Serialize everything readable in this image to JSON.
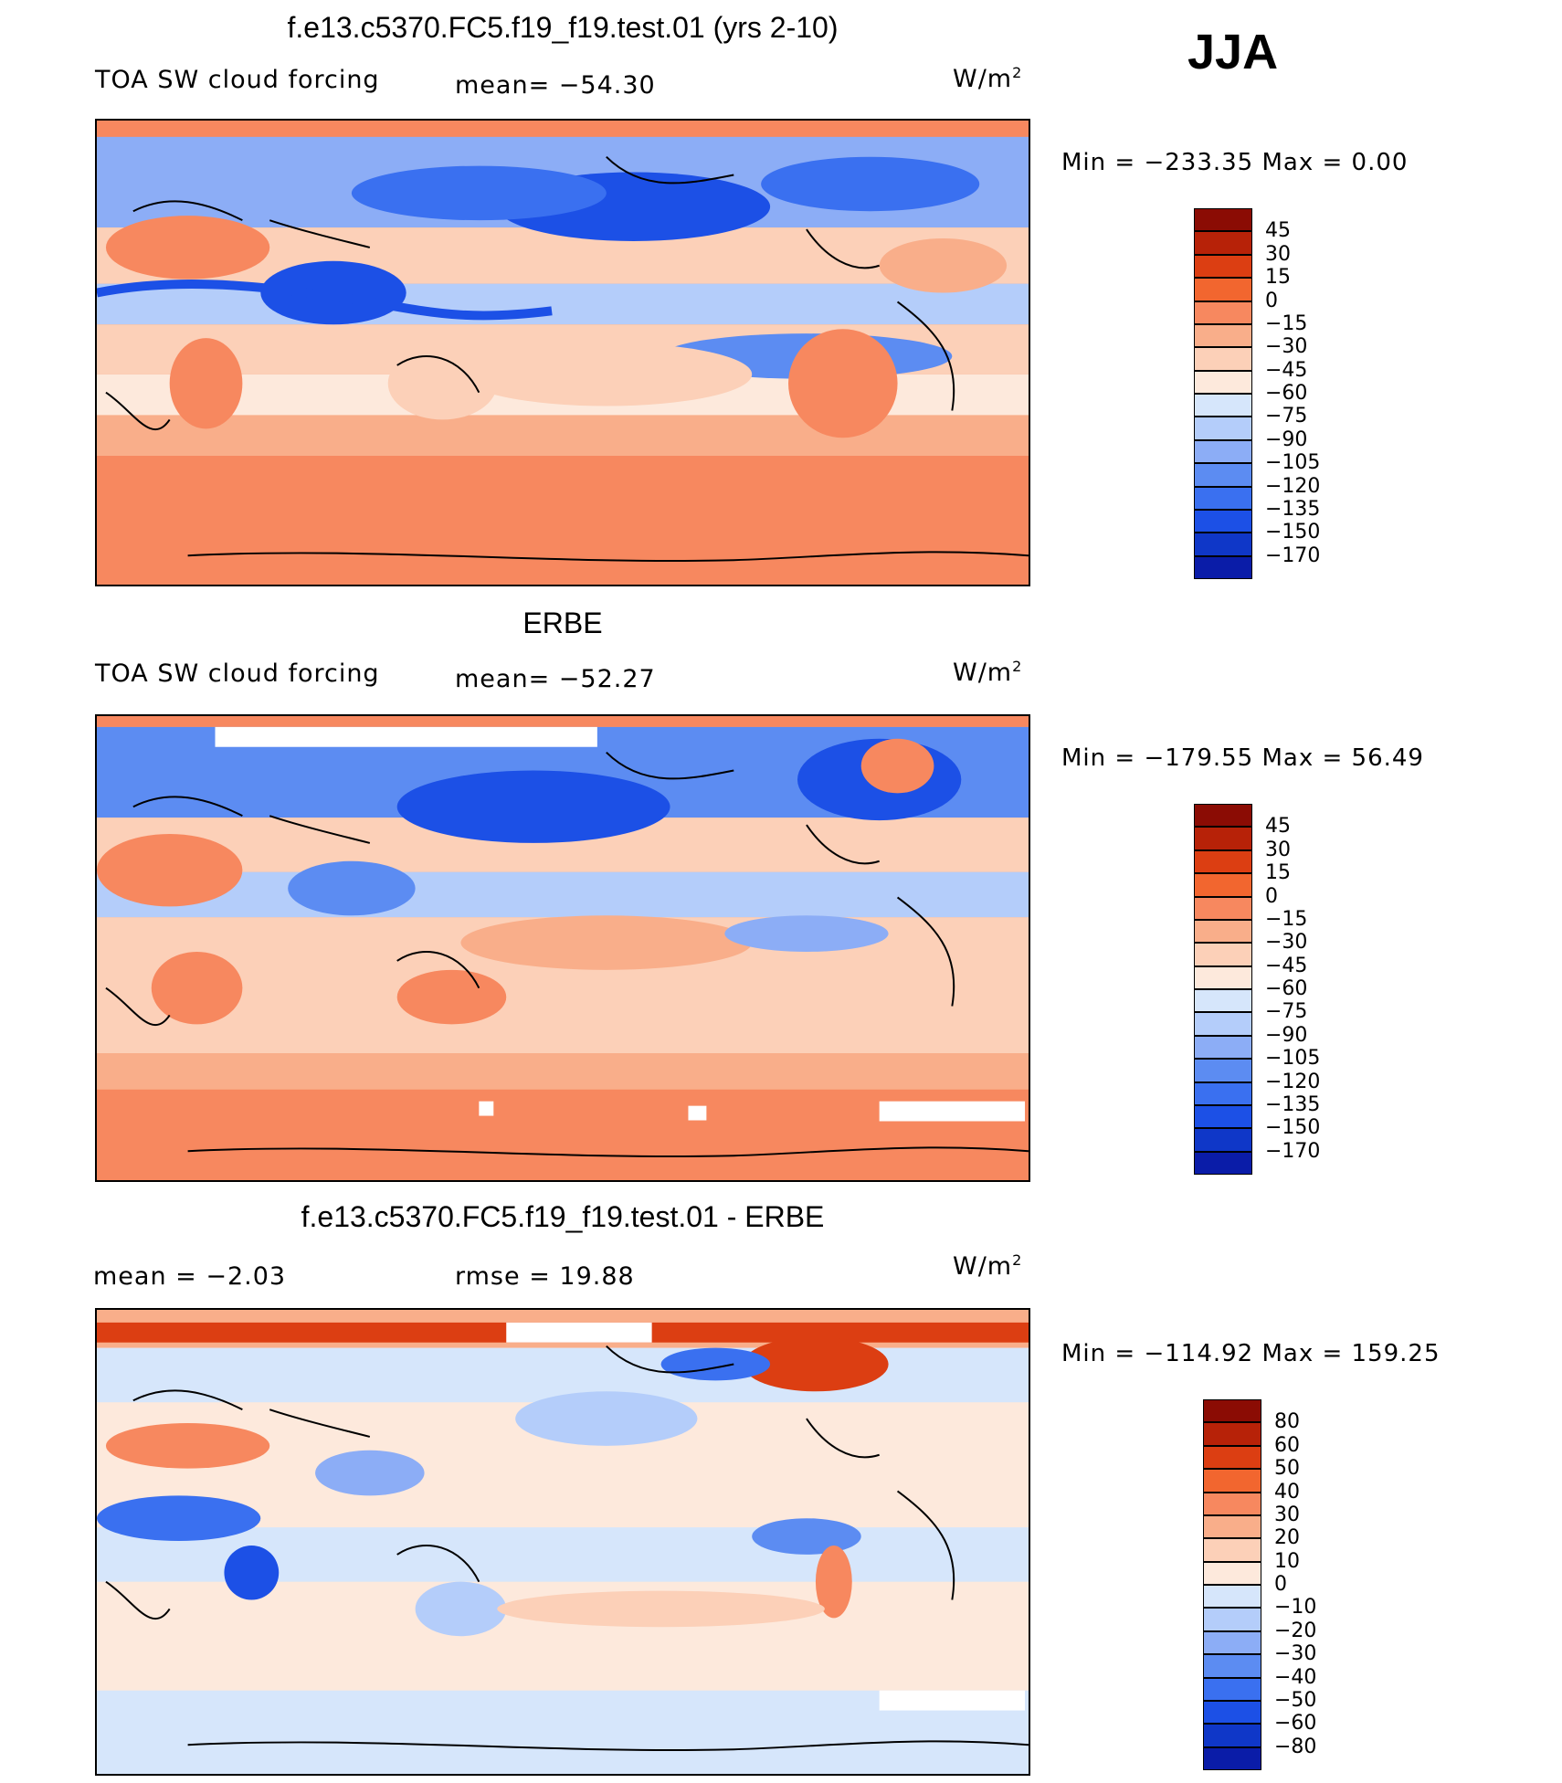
{
  "season": "JJA",
  "colors": {
    "main_scale": [
      "#000080",
      "#0a1ca8",
      "#0f37c8",
      "#1c50e6",
      "#3a70f0",
      "#5c8cf2",
      "#8cadf6",
      "#b4cdfa",
      "#d6e6fb",
      "#fde9dc",
      "#fcd0b8",
      "#f9ae8a",
      "#f7885f",
      "#f2662f",
      "#dc3e12",
      "#b72208",
      "#8b0c04"
    ],
    "land_outline": "#000000"
  },
  "panels": [
    {
      "title": "f.e13.c5370.FC5.f19_f19.test.01 (yrs 2-10)",
      "variable": "TOA SW cloud forcing",
      "stat1": "mean= −54.30",
      "stat2": "",
      "units": "W/m",
      "units_sup": "2",
      "minmax": "Min  =  −233.35  Max  =     0.00",
      "colorbar_ticks": [
        "45",
        "30",
        "15",
        "0",
        "−15",
        "−30",
        "−45",
        "−60",
        "−75",
        "−90",
        "−105",
        "−120",
        "−135",
        "−150",
        "−170"
      ]
    },
    {
      "title": "ERBE",
      "variable": "TOA SW cloud forcing",
      "stat1": "mean= −52.27",
      "stat2": "",
      "units": "W/m",
      "units_sup": "2",
      "minmax": "Min  =  −179.55  Max  =   56.49",
      "colorbar_ticks": [
        "45",
        "30",
        "15",
        "0",
        "−15",
        "−30",
        "−45",
        "−60",
        "−75",
        "−90",
        "−105",
        "−120",
        "−135",
        "−150",
        "−170"
      ]
    },
    {
      "title": "f.e13.c5370.FC5.f19_f19.test.01 - ERBE",
      "variable": "",
      "stat1": "mean  =    −2.03",
      "stat2": "rmse  =    19.88",
      "units": "W/m",
      "units_sup": "2",
      "minmax": "Min  =  −114.92  Max  =  159.25",
      "colorbar_ticks": [
        "80",
        "60",
        "50",
        "40",
        "30",
        "20",
        "10",
        "0",
        "−10",
        "−20",
        "−30",
        "−40",
        "−50",
        "−60",
        "−80"
      ]
    }
  ]
}
